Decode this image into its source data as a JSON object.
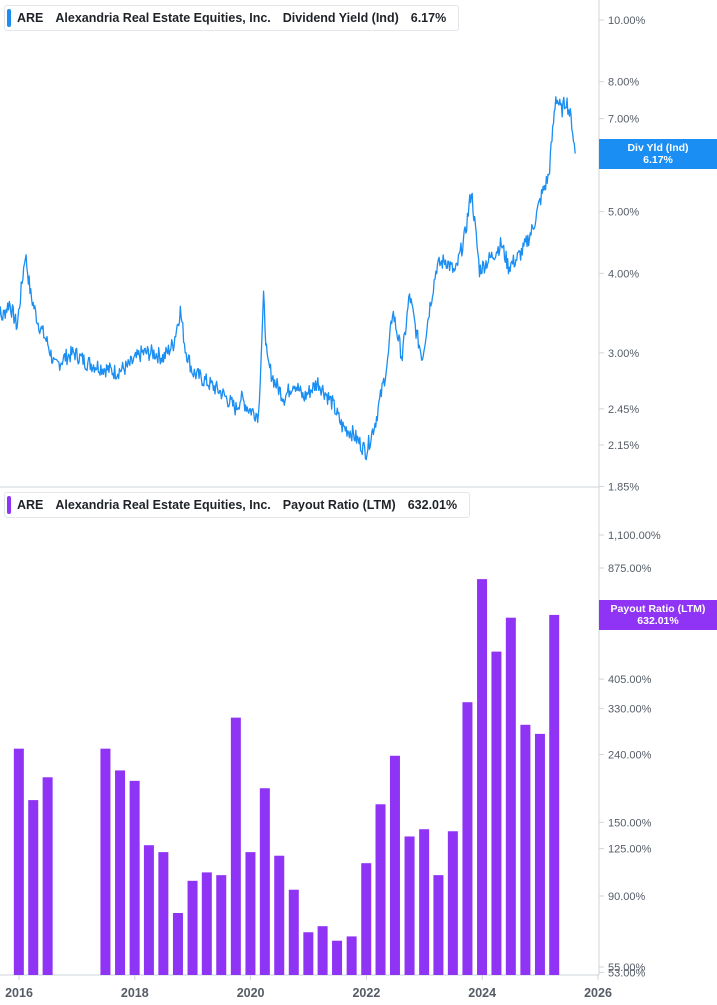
{
  "colors": {
    "yield": "#1a8ef2",
    "payout": "#8f33f5",
    "axis": "#cfd4da",
    "text": "#555c66"
  },
  "top_legend": {
    "ticker": "ARE",
    "company": "Alexandria Real Estate Equities, Inc.",
    "metric": "Dividend Yield (Ind)",
    "value": "6.17%"
  },
  "bottom_legend": {
    "ticker": "ARE",
    "company": "Alexandria Real Estate Equities, Inc.",
    "metric": "Payout Ratio (LTM)",
    "value": "632.01%"
  },
  "top_tag": {
    "title": "Div Yld (Ind)",
    "value": "6.17%"
  },
  "bottom_tag": {
    "title": "Payout Ratio (LTM)",
    "value": "632.01%"
  },
  "chart_data": [
    {
      "type": "line",
      "scale": "log",
      "series": [
        {
          "name": "Dividend Yield (Ind)",
          "unit": "%",
          "points": [
            [
              "2015-08-01",
              3.7
            ],
            [
              "2015-09-15",
              3.4
            ],
            [
              "2015-11-01",
              3.6
            ],
            [
              "2015-12-20",
              3.3
            ],
            [
              "2016-02-10",
              4.3
            ],
            [
              "2016-03-15",
              3.7
            ],
            [
              "2016-05-01",
              3.35
            ],
            [
              "2016-07-01",
              3.1
            ],
            [
              "2016-08-15",
              2.85
            ],
            [
              "2016-10-15",
              2.95
            ],
            [
              "2016-12-15",
              3.0
            ],
            [
              "2017-03-01",
              2.9
            ],
            [
              "2017-06-01",
              2.85
            ],
            [
              "2017-09-01",
              2.8
            ],
            [
              "2017-11-15",
              2.85
            ],
            [
              "2018-02-15",
              3.0
            ],
            [
              "2018-05-01",
              3.0
            ],
            [
              "2018-07-01",
              2.95
            ],
            [
              "2018-09-01",
              3.1
            ],
            [
              "2018-10-15",
              3.5
            ],
            [
              "2018-11-15",
              3.05
            ],
            [
              "2019-01-01",
              2.8
            ],
            [
              "2019-04-01",
              2.7
            ],
            [
              "2019-07-01",
              2.6
            ],
            [
              "2019-10-01",
              2.45
            ],
            [
              "2019-11-01",
              2.55
            ],
            [
              "2019-12-20",
              2.45
            ],
            [
              "2020-02-20",
              2.4
            ],
            [
              "2020-03-23",
              3.65
            ],
            [
              "2020-04-15",
              2.9
            ],
            [
              "2020-06-01",
              2.7
            ],
            [
              "2020-08-01",
              2.55
            ],
            [
              "2020-10-01",
              2.7
            ],
            [
              "2020-12-01",
              2.55
            ],
            [
              "2021-03-01",
              2.7
            ],
            [
              "2021-06-01",
              2.5
            ],
            [
              "2021-08-01",
              2.3
            ],
            [
              "2021-10-01",
              2.25
            ],
            [
              "2021-12-31",
              2.1
            ],
            [
              "2022-03-01",
              2.35
            ],
            [
              "2022-05-15",
              2.9
            ],
            [
              "2022-06-15",
              3.5
            ],
            [
              "2022-08-15",
              2.95
            ],
            [
              "2022-09-30",
              3.7
            ],
            [
              "2022-11-15",
              3.2
            ],
            [
              "2022-12-20",
              2.95
            ],
            [
              "2023-02-01",
              3.5
            ],
            [
              "2023-03-20",
              4.1
            ],
            [
              "2023-05-15",
              4.2
            ],
            [
              "2023-07-15",
              4.0
            ],
            [
              "2023-09-15",
              4.6
            ],
            [
              "2023-10-25",
              5.4
            ],
            [
              "2023-12-15",
              4.05
            ],
            [
              "2024-03-01",
              4.25
            ],
            [
              "2024-05-01",
              4.45
            ],
            [
              "2024-06-15",
              4.1
            ],
            [
              "2024-08-01",
              4.2
            ],
            [
              "2024-09-15",
              4.35
            ],
            [
              "2024-11-15",
              4.7
            ],
            [
              "2025-01-10",
              5.3
            ],
            [
              "2025-02-25",
              5.7
            ],
            [
              "2025-04-10",
              7.6
            ],
            [
              "2025-05-15",
              7.2
            ],
            [
              "2025-06-15",
              7.5
            ],
            [
              "2025-07-20",
              6.9
            ],
            [
              "2025-08-10",
              6.17
            ]
          ]
        }
      ],
      "y_ticks": [
        {
          "value": 10,
          "label": "10.00%"
        },
        {
          "value": 8,
          "label": "8.00%"
        },
        {
          "value": 7,
          "label": "7.00%"
        },
        {
          "value": 5,
          "label": "5.00%"
        },
        {
          "value": 4,
          "label": "4.00%"
        },
        {
          "value": 3,
          "label": "3.00%"
        },
        {
          "value": 2.45,
          "label": "2.45%"
        },
        {
          "value": 2.15,
          "label": "2.15%"
        },
        {
          "value": 1.85,
          "label": "1.85%"
        }
      ]
    },
    {
      "type": "bar",
      "scale": "log",
      "series": [
        {
          "name": "Payout Ratio (LTM)",
          "unit": "%",
          "points": [
            [
              "2015-12-31",
              250
            ],
            [
              "2016-03-31",
              175
            ],
            [
              "2016-06-30",
              205
            ],
            [
              "2017-06-30",
              250
            ],
            [
              "2017-09-30",
              215
            ],
            [
              "2017-12-31",
              200
            ],
            [
              "2018-03-31",
              128
            ],
            [
              "2018-06-30",
              122
            ],
            [
              "2018-09-30",
              80
            ],
            [
              "2018-12-31",
              100
            ],
            [
              "2019-03-31",
              106
            ],
            [
              "2019-06-30",
              104
            ],
            [
              "2019-09-30",
              310
            ],
            [
              "2019-12-31",
              122
            ],
            [
              "2020-03-31",
              190
            ],
            [
              "2020-06-30",
              119
            ],
            [
              "2020-09-30",
              94
            ],
            [
              "2020-12-31",
              70
            ],
            [
              "2021-03-31",
              73
            ],
            [
              "2021-06-30",
              66
            ],
            [
              "2021-09-30",
              68
            ],
            [
              "2021-12-31",
              113
            ],
            [
              "2022-03-31",
              170
            ],
            [
              "2022-06-30",
              238
            ],
            [
              "2022-09-30",
              136
            ],
            [
              "2022-12-31",
              143
            ],
            [
              "2023-03-31",
              104
            ],
            [
              "2023-06-30",
              141
            ],
            [
              "2023-09-30",
              345
            ],
            [
              "2023-12-31",
              810
            ],
            [
              "2024-03-31",
              490
            ],
            [
              "2024-06-30",
              620
            ],
            [
              "2024-09-30",
              295
            ],
            [
              "2024-12-31",
              277
            ],
            [
              "2025-03-31",
              632.01
            ]
          ]
        }
      ],
      "y_ticks": [
        {
          "value": 1100,
          "label": "1,100.00%"
        },
        {
          "value": 875,
          "label": "875.00%"
        },
        {
          "value": 405,
          "label": "405.00%"
        },
        {
          "value": 330,
          "label": "330.00%"
        },
        {
          "value": 240,
          "label": "240.00%"
        },
        {
          "value": 150,
          "label": "150.00%"
        },
        {
          "value": 125,
          "label": "125.00%"
        },
        {
          "value": 90,
          "label": "90.00%"
        },
        {
          "value": 55,
          "label": "55.00%"
        },
        {
          "value": 53,
          "label": "53.00%"
        }
      ]
    }
  ],
  "x_ticks": [
    {
      "year": 2016,
      "label": "2016"
    },
    {
      "year": 2018,
      "label": "2018"
    },
    {
      "year": 2020,
      "label": "2020"
    },
    {
      "year": 2022,
      "label": "2022"
    },
    {
      "year": 2024,
      "label": "2024"
    },
    {
      "year": 2026,
      "label": "2026"
    }
  ]
}
